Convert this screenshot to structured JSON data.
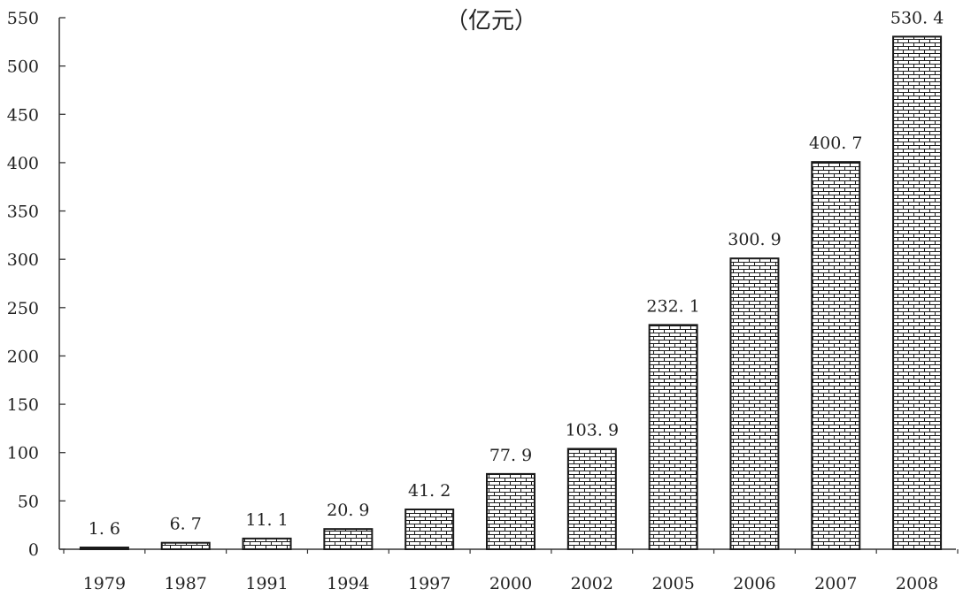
{
  "chart_data": {
    "type": "bar",
    "title": "",
    "subtitle": "（亿元）",
    "xlabel": "",
    "ylabel": "",
    "categories": [
      "1979",
      "1987",
      "1991",
      "1994",
      "1997",
      "2000",
      "2002",
      "2005",
      "2006",
      "2007",
      "2008"
    ],
    "values": [
      1.6,
      6.7,
      11.1,
      20.9,
      41.2,
      77.9,
      103.9,
      232.1,
      300.9,
      400.7,
      530.4
    ],
    "value_labels": [
      "1. 6",
      "6. 7",
      "11. 1",
      "20. 9",
      "41. 2",
      "77. 9",
      "103. 9",
      "232. 1",
      "300. 9",
      "400. 7",
      "530. 4"
    ],
    "ylim": [
      0,
      550
    ],
    "yticks": [
      0,
      50,
      100,
      150,
      200,
      250,
      300,
      350,
      400,
      450,
      500,
      550
    ],
    "grid": false,
    "legend": "none",
    "bar_pattern": "brick",
    "colors": {
      "bar_fill": "#ffffff",
      "bar_stroke": "#1a1a1a",
      "axis": "#333333",
      "text": "#222222"
    }
  }
}
